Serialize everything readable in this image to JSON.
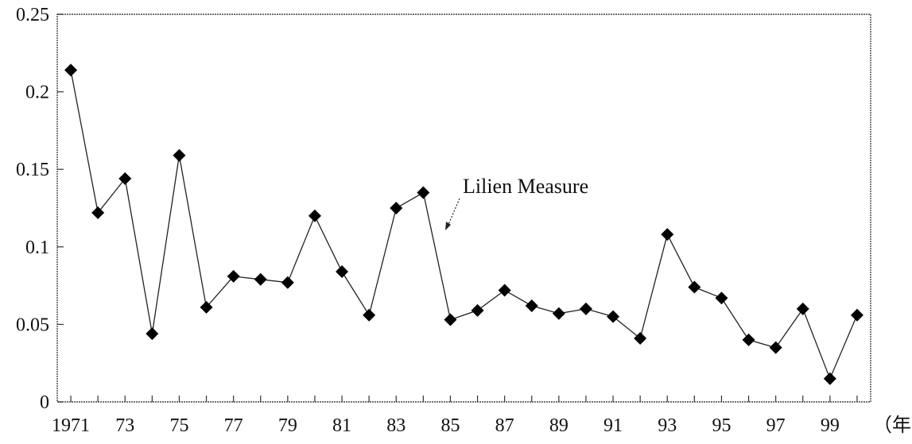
{
  "chart_data": {
    "type": "line",
    "title": "",
    "xlabel": "（年）",
    "ylabel": "",
    "x": [
      1971,
      1972,
      1973,
      1974,
      1975,
      1976,
      1977,
      1978,
      1979,
      1980,
      1981,
      1982,
      1983,
      1984,
      1985,
      1986,
      1987,
      1988,
      1989,
      1990,
      1991,
      1992,
      1993,
      1994,
      1995,
      1996,
      1997,
      1998,
      1999,
      2000
    ],
    "series": [
      {
        "name": "Lilien Measure",
        "values": [
          0.214,
          0.122,
          0.144,
          0.044,
          0.159,
          0.061,
          0.081,
          0.079,
          0.077,
          0.12,
          0.084,
          0.056,
          0.125,
          0.135,
          0.053,
          0.059,
          0.072,
          0.062,
          0.057,
          0.06,
          0.055,
          0.041,
          0.108,
          0.074,
          0.067,
          0.04,
          0.035,
          0.06,
          0.015,
          0.056
        ]
      }
    ],
    "x_tick_labels": [
      "1971",
      "73",
      "75",
      "77",
      "79",
      "81",
      "83",
      "85",
      "87",
      "89",
      "91",
      "93",
      "95",
      "97",
      "99"
    ],
    "x_tick_years": [
      1971,
      1973,
      1975,
      1977,
      1979,
      1981,
      1983,
      1985,
      1987,
      1989,
      1991,
      1993,
      1995,
      1997,
      1999
    ],
    "y_tick_labels": [
      "0",
      "0.05",
      "0.1",
      "0.15",
      "0.2",
      "0.25"
    ],
    "y_tick_values": [
      0,
      0.05,
      0.1,
      0.15,
      0.2,
      0.25
    ],
    "xlim": [
      1970.5,
      2000.5
    ],
    "ylim": [
      0,
      0.25
    ],
    "grid": false,
    "marker": "diamond",
    "line_color": "#222222",
    "marker_color": "#000000",
    "annotation": {
      "text": "Lilien Measure",
      "points_to_year": 1984
    }
  }
}
